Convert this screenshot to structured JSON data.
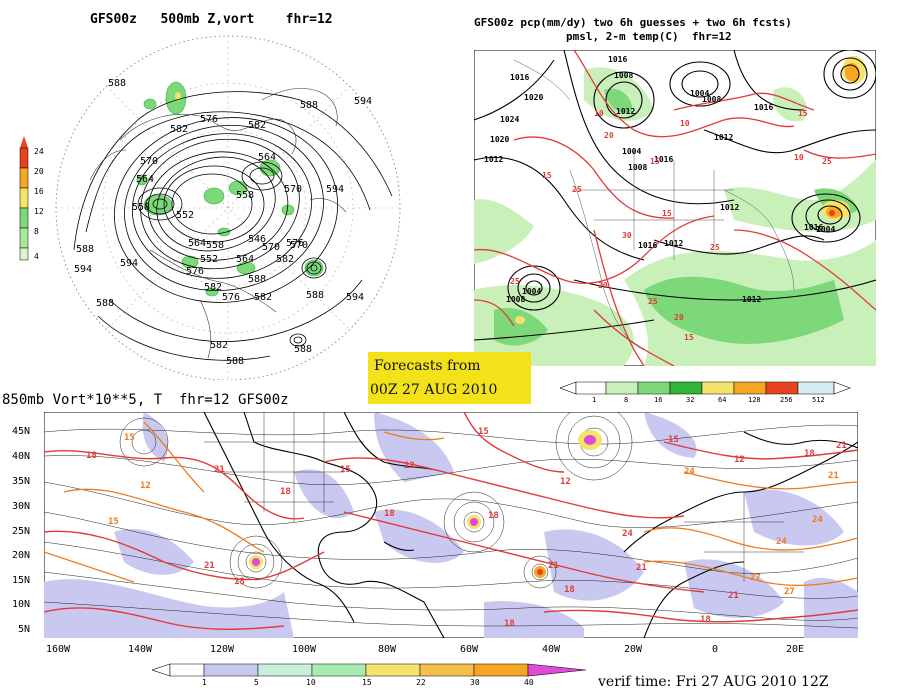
{
  "polar_panel": {
    "title": "GFS00z   500mb Z,vort    fhr=12",
    "legend_values": [
      "4",
      "8",
      "12",
      "16",
      "20",
      "24"
    ],
    "contour_labels": [
      "588",
      "582",
      "576",
      "582",
      "588",
      "570",
      "564",
      "558",
      "552",
      "558",
      "564",
      "570",
      "576",
      "582",
      "594",
      "588",
      "594",
      "570",
      "576",
      "582",
      "588",
      "564",
      "552",
      "558",
      "546",
      "564",
      "570",
      "582",
      "588",
      "576",
      "582",
      "588",
      "594",
      "594",
      "588",
      "588",
      "594"
    ]
  },
  "precip_panel": {
    "title_line1": "GFS00z pcp(mm/dy) two 6h guesses + two 6h fcsts)",
    "title_line2": "pmsl, 2-m temp(C)  fhr=12",
    "legend_values": [
      "1",
      "8",
      "16",
      "32",
      "64",
      "128",
      "256",
      "512"
    ],
    "pressure_labels": [
      "1016",
      "1020",
      "1024",
      "1016",
      "1008",
      "1012",
      "1016",
      "1004",
      "1008",
      "1012",
      "1020",
      "1012",
      "1008",
      "1016",
      "1012",
      "1004",
      "1012",
      "1016",
      "1004",
      "1008",
      "1016",
      "1004",
      "1012"
    ],
    "temp_labels": [
      "10",
      "15",
      "20",
      "25",
      "30",
      "15",
      "10",
      "25",
      "20",
      "25",
      "15",
      "25",
      "20",
      "15",
      "25",
      "10",
      "15"
    ]
  },
  "forecast_box": {
    "line1": "Forecasts from",
    "line2": "00Z 27 AUG 2010"
  },
  "vort_panel": {
    "title": "850mb Vort*10**5, T  fhr=12 GFS00z",
    "lat_labels": [
      "45N",
      "40N",
      "35N",
      "30N",
      "25N",
      "20N",
      "15N",
      "10N",
      "5N"
    ],
    "lon_labels": [
      "160W",
      "140W",
      "120W",
      "100W",
      "80W",
      "60W",
      "40W",
      "20W",
      "0",
      "20E"
    ],
    "legend_values": [
      "1",
      "5",
      "10",
      "15",
      "22",
      "30",
      "40"
    ],
    "temp_labels": [
      "18",
      "15",
      "12",
      "15",
      "21",
      "18",
      "18",
      "15",
      "12",
      "18",
      "21",
      "18",
      "24",
      "18",
      "21",
      "18",
      "12",
      "15",
      "21",
      "24",
      "27",
      "24",
      "21",
      "18",
      "15",
      "12",
      "18",
      "21",
      "24",
      "27",
      "21"
    ],
    "verif_time": "verif time: Fri 27 AUG 2010 12Z"
  },
  "colors": {
    "green_light": "#c8f0b8",
    "green": "#7dd87a",
    "green_dark": "#2fb53a",
    "yellow": "#f5e36b",
    "orange": "#f5a623",
    "red": "#e8431f",
    "lavender": "#c9c8f0",
    "magenta": "#e04ad8",
    "temp_red": "#e23a3a",
    "temp_orange": "#f07a1a"
  }
}
